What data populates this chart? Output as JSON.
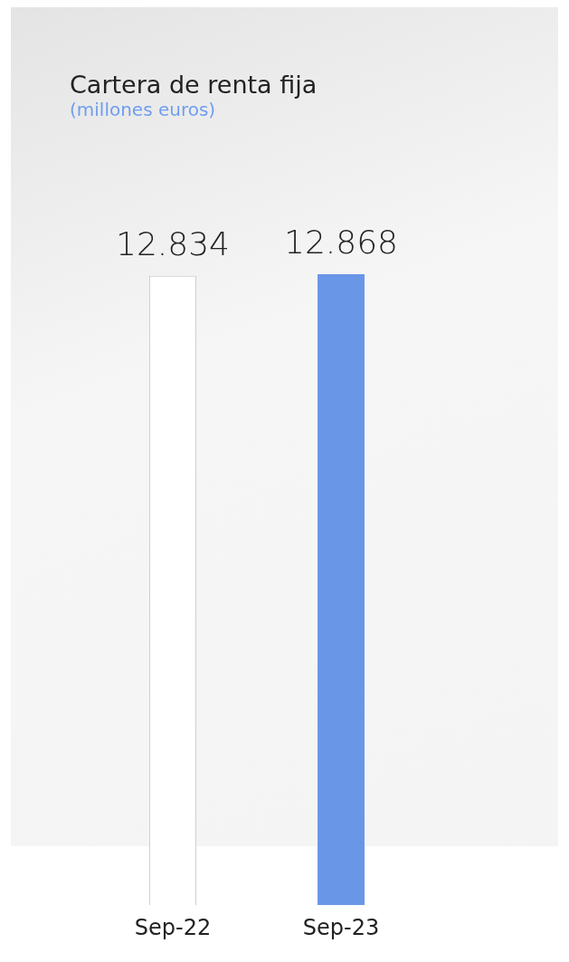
{
  "chart_data": {
    "type": "bar",
    "title": "Cartera de renta fija",
    "subtitle": "(millones euros)",
    "categories": [
      "Sep-22",
      "Sep-23"
    ],
    "values": [
      12834,
      12868
    ],
    "colors": [
      "#ffffff",
      "#6a96e8"
    ],
    "value_labels": [
      "12.834",
      "12.868"
    ],
    "grid": false,
    "legend": false,
    "tick_labels": "x"
  }
}
